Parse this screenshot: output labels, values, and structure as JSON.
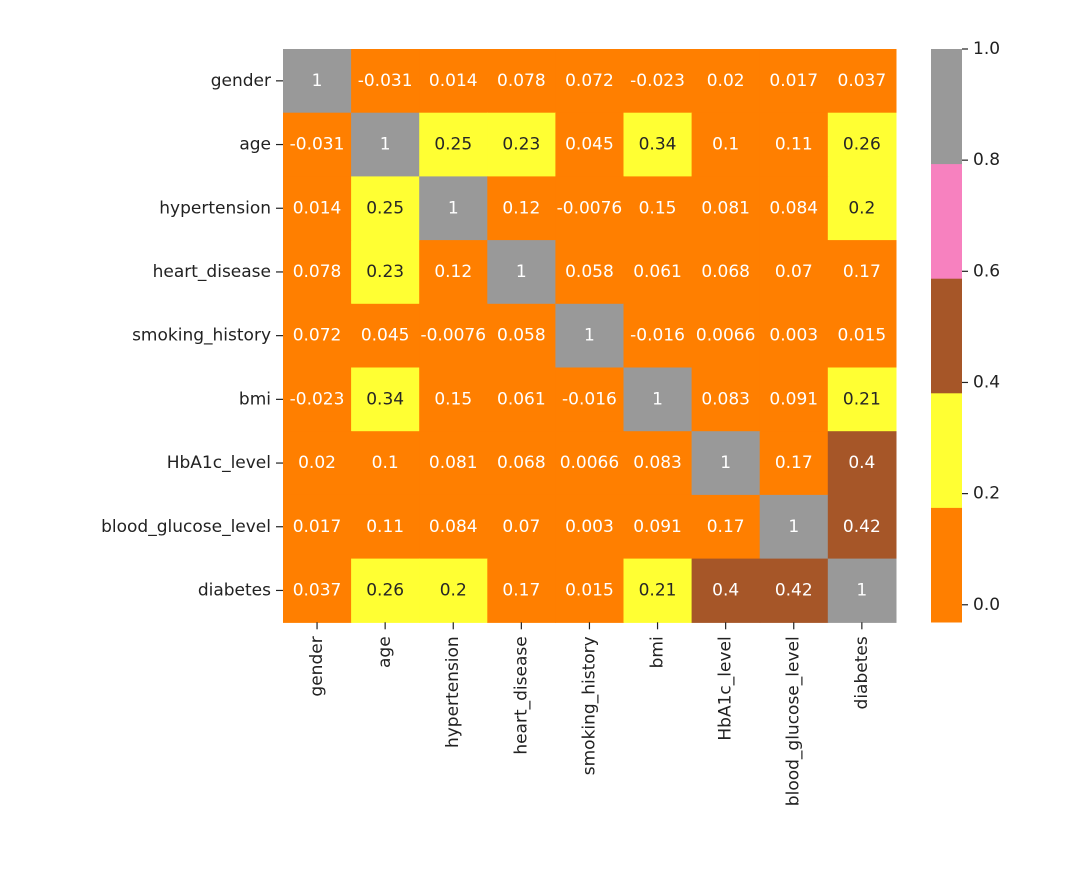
{
  "chart_data": {
    "type": "heatmap",
    "title": "",
    "xlabel": "",
    "ylabel": "",
    "row_labels": [
      "gender",
      "age",
      "hypertension",
      "heart_disease",
      "smoking_history",
      "bmi",
      "HbA1c_level",
      "blood_glucose_level",
      "diabetes"
    ],
    "col_labels": [
      "gender",
      "age",
      "hypertension",
      "heart_disease",
      "smoking_history",
      "bmi",
      "HbA1c_level",
      "blood_glucose_level",
      "diabetes"
    ],
    "values": [
      [
        1,
        -0.031,
        0.014,
        0.078,
        0.072,
        -0.023,
        0.02,
        0.017,
        0.037
      ],
      [
        -0.031,
        1,
        0.25,
        0.23,
        0.045,
        0.34,
        0.1,
        0.11,
        0.26
      ],
      [
        0.014,
        0.25,
        1,
        0.12,
        -0.0076,
        0.15,
        0.081,
        0.084,
        0.2
      ],
      [
        0.078,
        0.23,
        0.12,
        1,
        0.058,
        0.061,
        0.068,
        0.07,
        0.17
      ],
      [
        0.072,
        0.045,
        -0.0076,
        0.058,
        1,
        -0.016,
        0.0066,
        0.003,
        0.015
      ],
      [
        -0.023,
        0.34,
        0.15,
        0.061,
        -0.016,
        1,
        0.083,
        0.091,
        0.21
      ],
      [
        0.02,
        0.1,
        0.081,
        0.068,
        0.0066,
        0.083,
        1,
        0.17,
        0.4
      ],
      [
        0.017,
        0.11,
        0.084,
        0.07,
        0.003,
        0.091,
        0.17,
        1,
        0.42
      ],
      [
        0.037,
        0.26,
        0.2,
        0.17,
        0.015,
        0.21,
        0.4,
        0.42,
        1
      ]
    ],
    "annotations": [
      [
        "1",
        "-0.031",
        "0.014",
        "0.078",
        "0.072",
        "-0.023",
        "0.02",
        "0.017",
        "0.037"
      ],
      [
        "-0.031",
        "1",
        "0.25",
        "0.23",
        "0.045",
        "0.34",
        "0.1",
        "0.11",
        "0.26"
      ],
      [
        "0.014",
        "0.25",
        "1",
        "0.12",
        "-0.0076",
        "0.15",
        "0.081",
        "0.084",
        "0.2"
      ],
      [
        "0.078",
        "0.23",
        "0.12",
        "1",
        "0.058",
        "0.061",
        "0.068",
        "0.07",
        "0.17"
      ],
      [
        "0.072",
        "0.045",
        "-0.0076",
        "0.058",
        "1",
        "-0.016",
        "0.0066",
        "0.003",
        "0.015"
      ],
      [
        "-0.023",
        "0.34",
        "0.15",
        "0.061",
        "-0.016",
        "1",
        "0.083",
        "0.091",
        "0.21"
      ],
      [
        "0.02",
        "0.1",
        "0.081",
        "0.068",
        "0.0066",
        "0.083",
        "1",
        "0.17",
        "0.4"
      ],
      [
        "0.017",
        "0.11",
        "0.084",
        "0.07",
        "0.003",
        "0.091",
        "0.17",
        "1",
        "0.42"
      ],
      [
        "0.037",
        "0.26",
        "0.2",
        "0.17",
        "0.015",
        "0.21",
        "0.4",
        "0.42",
        "1"
      ]
    ],
    "colormap": {
      "name": "Set1-like discrete",
      "range": [
        -0.031,
        1.0
      ],
      "colors": [
        "#ff7f00",
        "#ffff33",
        "#a65628",
        "#f781bf",
        "#999999"
      ]
    },
    "colorbar": {
      "ticks": [
        0.0,
        0.2,
        0.4,
        0.6,
        0.8,
        1.0
      ],
      "tick_labels": [
        "0.0",
        "0.2",
        "0.4",
        "0.6",
        "0.8",
        "1.0"
      ]
    }
  }
}
